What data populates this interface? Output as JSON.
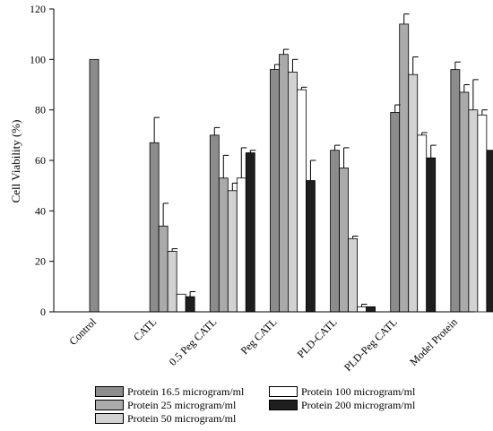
{
  "chart_data": {
    "type": "bar",
    "title": "",
    "xlabel": "",
    "ylabel": "Cell Viability (%)",
    "ylim": [
      0,
      120
    ],
    "yticks": [
      0,
      20,
      40,
      60,
      80,
      100,
      120
    ],
    "grid": false,
    "legend_position": "bottom",
    "categories": [
      "Control",
      "CATL",
      "0.5 Peg CATL",
      "Peg CATL",
      "PLD-CATL",
      "PLD-Peg CATL",
      "Model Protein"
    ],
    "series": [
      {
        "name": "Protein 16.5 microgram/ml",
        "color": "#8c8c8c",
        "values": [
          100,
          67,
          70,
          96,
          64,
          79,
          96
        ],
        "errors": [
          0,
          10,
          3,
          2,
          2,
          3,
          3
        ]
      },
      {
        "name": "Protein 25 microgram/ml",
        "color": "#aaaaaa",
        "values": [
          null,
          34,
          53,
          102,
          57,
          114,
          87
        ],
        "errors": [
          null,
          9,
          9,
          2,
          8,
          4,
          3
        ]
      },
      {
        "name": "Protein 50 microgram/ml",
        "color": "#d2d2d2",
        "values": [
          null,
          24,
          48,
          95,
          29,
          94,
          80
        ],
        "errors": [
          null,
          1,
          3,
          5,
          1,
          7,
          12
        ]
      },
      {
        "name": "Protein 100 microgram/ml",
        "color": "#ffffff",
        "values": [
          null,
          7,
          53,
          88,
          2,
          70,
          78
        ],
        "errors": [
          null,
          0,
          12,
          1,
          1,
          1,
          2
        ]
      },
      {
        "name": "Protein 200 microgram/ml",
        "color": "#1e1e1e",
        "values": [
          null,
          6,
          63,
          52,
          2,
          61,
          64
        ],
        "errors": [
          null,
          2,
          1,
          8,
          0,
          5,
          0
        ]
      }
    ]
  }
}
